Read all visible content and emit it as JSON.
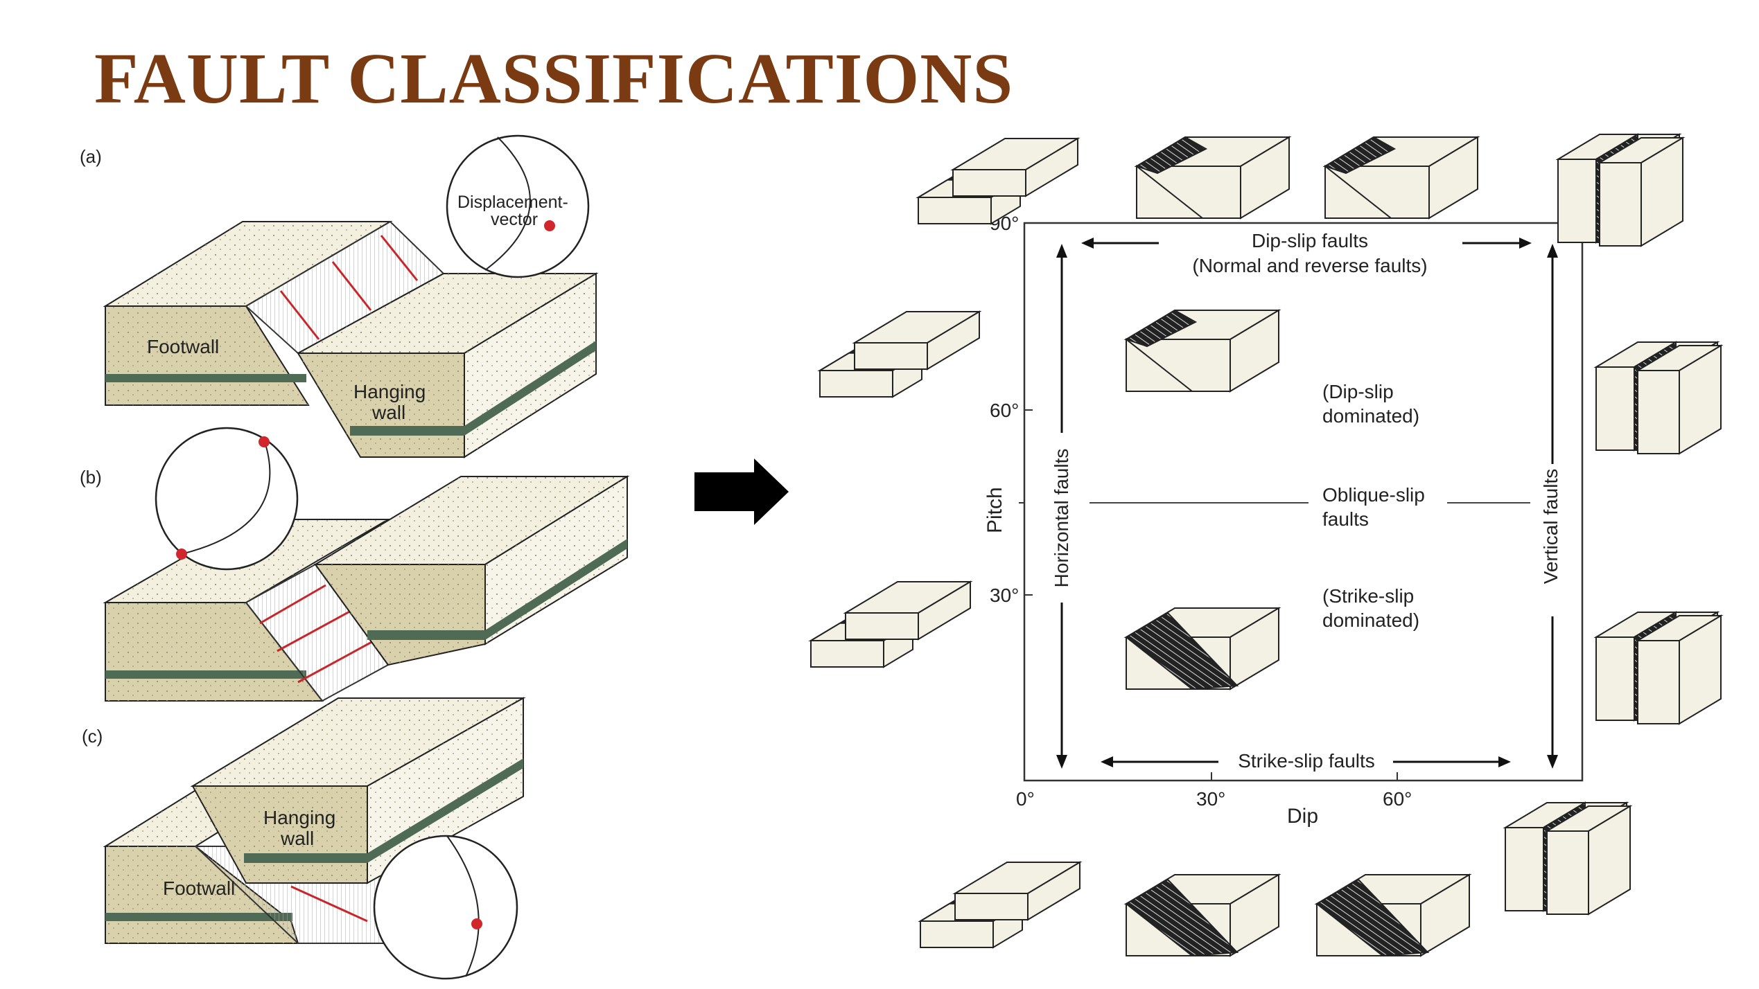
{
  "title": "FAULT CLASSIFICATIONS",
  "colors": {
    "title": "#7a3b12",
    "block_face": "#d9d0ac",
    "block_top": "#f3f0df",
    "block_side": "#f7f5ea",
    "stripe": "#4f6b56",
    "arrow_red": "#c8262a",
    "dot_red": "#d0262c",
    "mini_face": "#f2f1e4",
    "mini_black": "#222222"
  },
  "panel_a": {
    "label": "(a)",
    "footwall": "Footwall",
    "hanging_1": "Hanging",
    "hanging_2": "wall",
    "vector_1": "Displacement-",
    "vector_2": "vector"
  },
  "panel_b": {
    "label": "(b)"
  },
  "panel_c": {
    "label": "(c)",
    "hanging_1": "Hanging",
    "hanging_2": "wall",
    "footwall": "Footwall"
  },
  "chart": {
    "top_label_1": "Dip-slip faults",
    "top_label_2": "(Normal and reverse faults)",
    "dip_dominated_1": "(Dip-slip",
    "dip_dominated_2": "dominated)",
    "oblique_1": "Oblique-slip",
    "oblique_2": "faults",
    "strike_dominated_1": "(Strike-slip",
    "strike_dominated_2": "dominated)",
    "bottom_label": "Strike-slip faults",
    "left_label": "Horizontal faults",
    "right_label": "Vertical faults",
    "pitch_axis": "Pitch",
    "dip_axis": "Dip",
    "pitch_ticks": [
      "90°",
      "60°",
      "30°"
    ],
    "dip_ticks": [
      "0°",
      "30°",
      "60°"
    ]
  }
}
